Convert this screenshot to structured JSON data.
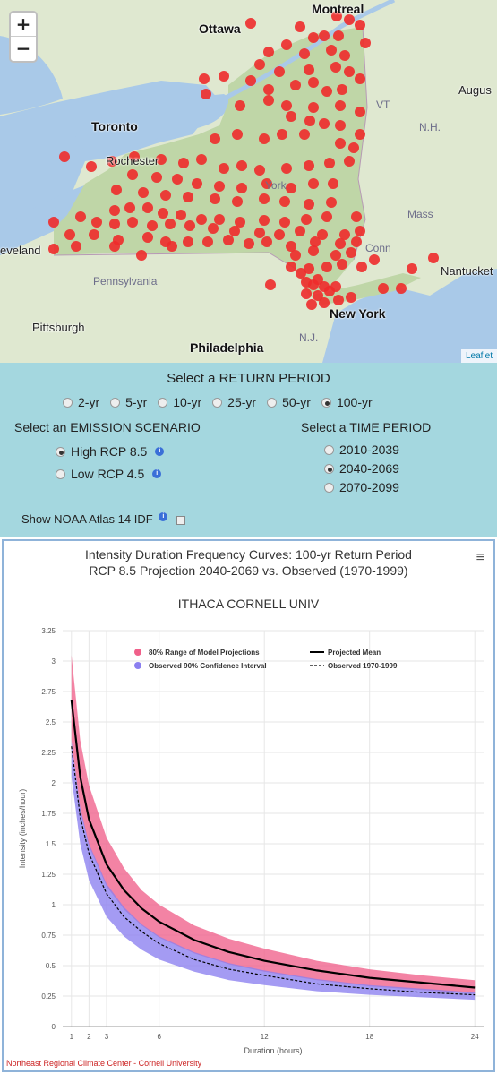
{
  "map": {
    "zoom_in": "+",
    "zoom_out": "−",
    "attribution": "Leaflet",
    "cities": {
      "montreal": "Montreal",
      "ottawa": "Ottawa",
      "toronto": "Toronto",
      "rochester": "Rochester",
      "cleveland": "eveland",
      "pittsburgh": "Pittsburgh",
      "philadelphia": "Philadelphia",
      "new_york": "New York",
      "augusta": "Augus",
      "nantucket": "Nantucket"
    },
    "regions": {
      "pennsylvania": "Pennsylvania",
      "vt": "VT",
      "nh": "N.H.",
      "mass": "Mass",
      "conn": "Conn",
      "nj": "N.J.",
      "ny": "York"
    },
    "colors": {
      "water": "#a9c9e8",
      "land": "#dfe8d0",
      "ny_land": "#bfd6a7",
      "station": "#ee2b2b"
    }
  },
  "controls": {
    "return_period_title": "Select a RETURN PERIOD",
    "return_periods": [
      {
        "label": "2-yr",
        "selected": false
      },
      {
        "label": "5-yr",
        "selected": false
      },
      {
        "label": "10-yr",
        "selected": false
      },
      {
        "label": "25-yr",
        "selected": false
      },
      {
        "label": "50-yr",
        "selected": false
      },
      {
        "label": "100-yr",
        "selected": true
      }
    ],
    "emission_title": "Select an EMISSION SCENARIO",
    "emissions": [
      {
        "label": "High RCP 8.5",
        "selected": true
      },
      {
        "label": "Low RCP 4.5",
        "selected": false
      }
    ],
    "time_title": "Select a TIME PERIOD",
    "time_periods": [
      {
        "label": "2010-2039",
        "selected": false
      },
      {
        "label": "2040-2069",
        "selected": true
      },
      {
        "label": "2070-2099",
        "selected": false
      }
    ],
    "noaa_label": "Show NOAA Atlas 14 IDF",
    "info_icon": "i"
  },
  "chart": {
    "menu_icon": "≡",
    "credit": "Northeast Regional Climate Center - Cornell University"
  },
  "chart_data": {
    "type": "line",
    "title": "Intensity Duration Frequency Curves: 100-yr Return Period",
    "title_line2": "RCP 8.5 Projection 2040-2069 vs. Observed (1970-1999)",
    "subtitle": "ITHACA CORNELL UNIV",
    "xlabel": "Duration (hours)",
    "ylabel": "Intensity (inches/hour)",
    "xlim": [
      0.5,
      24.5
    ],
    "ylim": [
      0,
      3.25
    ],
    "x_ticks": [
      1,
      2,
      3,
      6,
      12,
      18,
      24
    ],
    "y_ticks": [
      0,
      0.25,
      0.5,
      0.75,
      1,
      1.25,
      1.5,
      1.75,
      2,
      2.25,
      2.5,
      2.75,
      3,
      3.25
    ],
    "y_tick_labels": [
      "0",
      "0.25",
      "0.5",
      "0.75",
      "1",
      "1.25",
      "1.5",
      "1.75",
      "2",
      "2.25",
      "2.5",
      "2.75",
      "3",
      "3.25"
    ],
    "x": [
      1,
      1.5,
      2,
      3,
      4,
      5,
      6,
      8,
      10,
      12,
      15,
      18,
      21,
      24
    ],
    "legend": [
      {
        "label": "80% Range of Model Projections",
        "color": "#f0608a",
        "kind": "band"
      },
      {
        "label": "Observed 90% Confidence Interval",
        "color": "#8b7ff0",
        "kind": "band"
      },
      {
        "label": "Projected Mean",
        "color": "#000000",
        "kind": "line"
      },
      {
        "label": "Observed 1970-1999",
        "color": "#000000",
        "kind": "dash"
      }
    ],
    "series": [
      {
        "name": "80% Range of Model Projections",
        "kind": "band",
        "color": "#f0608a",
        "upper": [
          3.05,
          2.35,
          1.98,
          1.55,
          1.3,
          1.12,
          1.0,
          0.83,
          0.72,
          0.64,
          0.54,
          0.47,
          0.42,
          0.38
        ],
        "lower": [
          2.35,
          1.78,
          1.48,
          1.15,
          0.96,
          0.83,
          0.73,
          0.6,
          0.51,
          0.45,
          0.38,
          0.33,
          0.3,
          0.27
        ]
      },
      {
        "name": "Observed 90% Confidence Interval",
        "kind": "band",
        "color": "#8b7ff0",
        "upper": [
          2.35,
          1.8,
          1.5,
          1.17,
          0.98,
          0.84,
          0.74,
          0.61,
          0.52,
          0.46,
          0.39,
          0.34,
          0.31,
          0.28
        ],
        "lower": [
          2.05,
          1.5,
          1.2,
          0.9,
          0.74,
          0.63,
          0.55,
          0.45,
          0.38,
          0.34,
          0.29,
          0.26,
          0.24,
          0.22
        ]
      },
      {
        "name": "Projected Mean",
        "kind": "line",
        "color": "#000000",
        "values": [
          2.68,
          2.05,
          1.7,
          1.33,
          1.12,
          0.97,
          0.86,
          0.71,
          0.61,
          0.54,
          0.46,
          0.4,
          0.36,
          0.32
        ]
      },
      {
        "name": "Observed 1970-1999",
        "kind": "dash",
        "color": "#000000",
        "values": [
          2.3,
          1.72,
          1.42,
          1.09,
          0.9,
          0.78,
          0.68,
          0.55,
          0.47,
          0.42,
          0.35,
          0.31,
          0.28,
          0.26
        ]
      }
    ]
  }
}
